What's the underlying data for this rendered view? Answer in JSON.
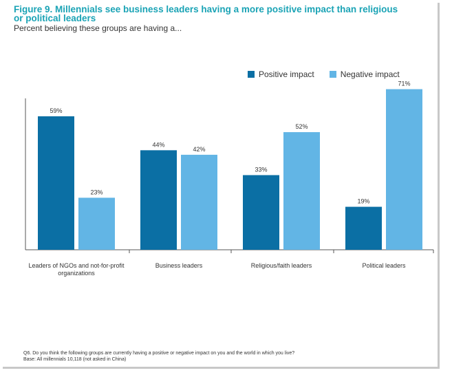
{
  "title": "Figure 9. Millennials see business leaders having a more positive impact than religious or political leaders",
  "subtitle": "Percent believing these groups are having a...",
  "colors": {
    "positive": "#0b6fa4",
    "negative": "#62b5e5",
    "accent": "#1aa3b5"
  },
  "chart_data": {
    "type": "bar",
    "categories": [
      "Leaders of NGOs and not-for-profit organizations",
      "Business leaders",
      "Religious/faith leaders",
      "Political leaders"
    ],
    "category_lines": [
      [
        "Leaders of NGOs and not-for-profit",
        "organizations"
      ],
      [
        "Business leaders"
      ],
      [
        "Religious/faith leaders"
      ],
      [
        "Political leaders"
      ]
    ],
    "series": [
      {
        "name": "Positive impact",
        "values": [
          59,
          44,
          33,
          19
        ],
        "labels": [
          "59%",
          "44%",
          "33%",
          "19%"
        ]
      },
      {
        "name": "Negative impact",
        "values": [
          23,
          42,
          52,
          71
        ],
        "labels": [
          "23%",
          "42%",
          "52%",
          "71%"
        ]
      }
    ],
    "ylim": [
      0,
      80
    ],
    "legend_position": "top-right"
  },
  "footnote": {
    "line1": "Q6. Do you think the following groups are currently having a positive or negative impact on you and the world in which you live?",
    "line2": "Base: All millennials 10,118 (not asked in China)"
  }
}
